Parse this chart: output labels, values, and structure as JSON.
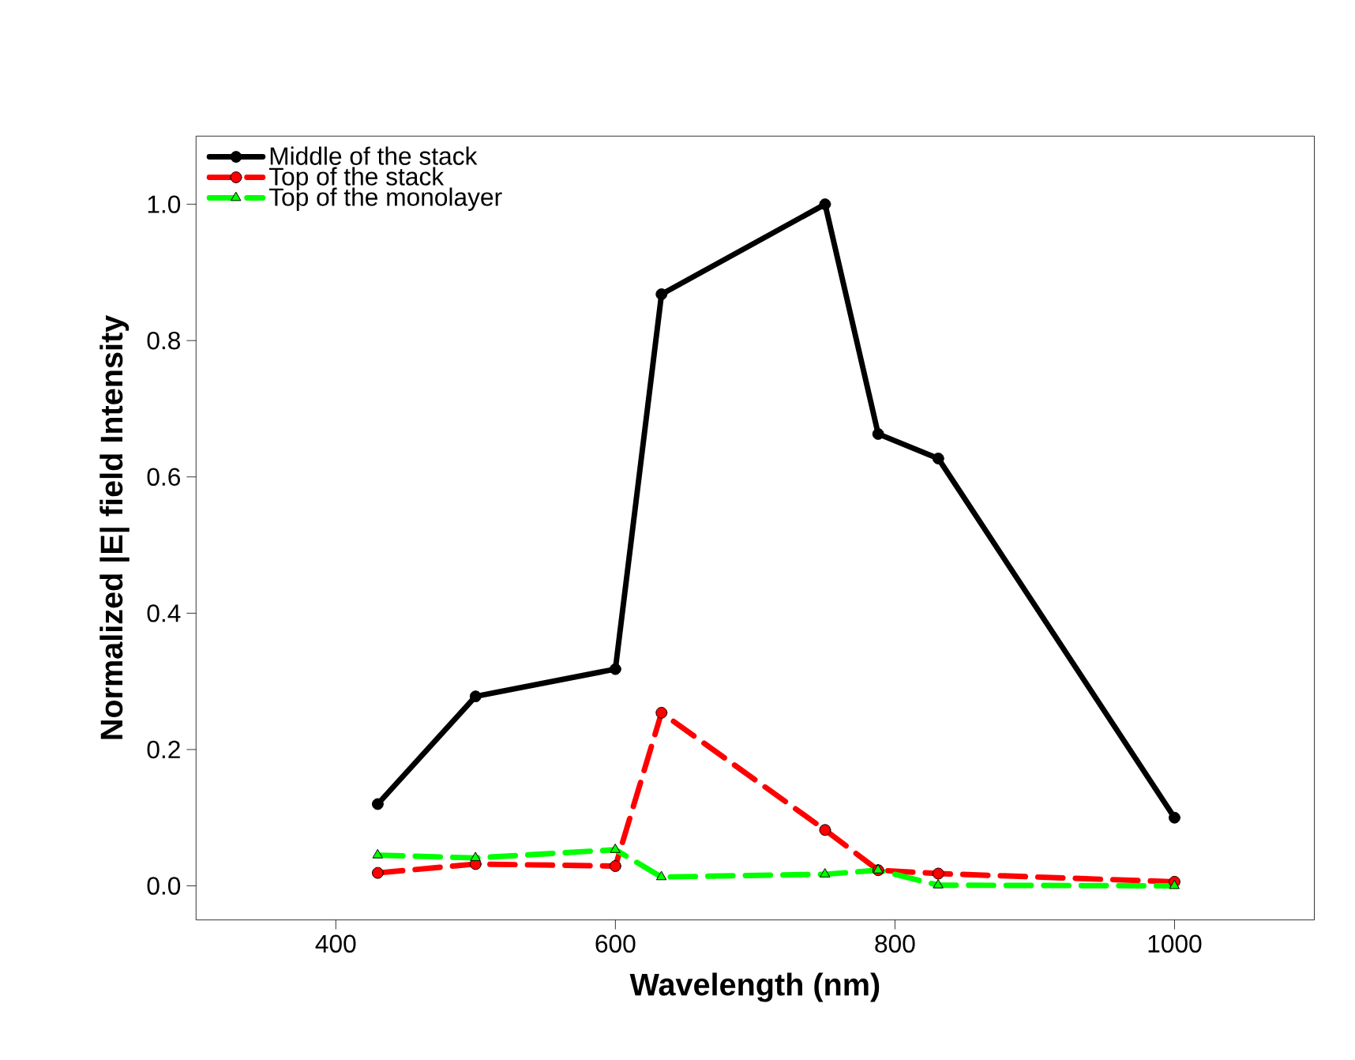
{
  "chart_data": {
    "type": "line",
    "xlabel": "Wavelength (nm)",
    "ylabel": "Normalized |E| field Intensity",
    "x": [
      430,
      500,
      600,
      633,
      750,
      788,
      831,
      1000
    ],
    "series": [
      {
        "name": "Middle of the stack",
        "color": "#000000",
        "marker": "circle",
        "line_style": "solid",
        "values": [
          0.12,
          0.278,
          0.318,
          0.868,
          1.0,
          0.663,
          0.627,
          0.1
        ]
      },
      {
        "name": "Top of the stack",
        "color": "#ff0000",
        "marker": "circle",
        "line_style": "dashed",
        "values": [
          0.019,
          0.032,
          0.029,
          0.254,
          0.082,
          0.023,
          0.018,
          0.006
        ]
      },
      {
        "name": "Top of the monolayer",
        "color": "#00ff00",
        "marker": "triangle",
        "line_style": "dashed",
        "values": [
          0.045,
          0.041,
          0.053,
          0.013,
          0.017,
          0.023,
          0.001,
          0.0
        ]
      }
    ],
    "xlim": [
      300,
      1100
    ],
    "ylim": [
      -0.05,
      1.1
    ],
    "xticks": [
      400,
      600,
      800,
      1000
    ],
    "yticks": [
      {
        "value": 0,
        "label": "0.0"
      },
      {
        "value": 0.2,
        "label": "0.2"
      },
      {
        "value": 0.4,
        "label": "0.4"
      },
      {
        "value": 0.6,
        "label": "0.6"
      },
      {
        "value": 0.8,
        "label": "0.8"
      },
      {
        "value": 1.0,
        "label": "1.0"
      }
    ],
    "grid": false,
    "legend": "top left"
  }
}
